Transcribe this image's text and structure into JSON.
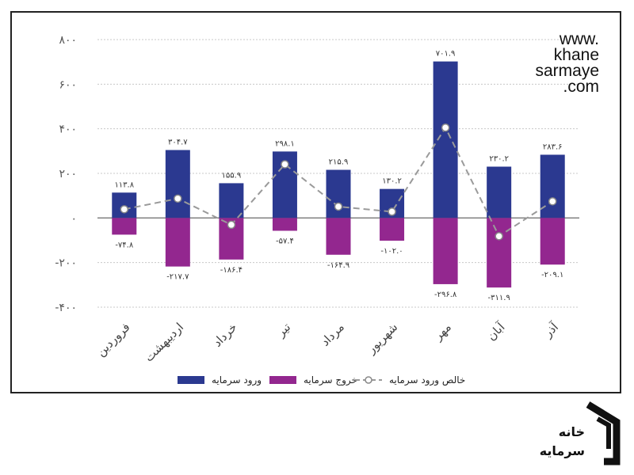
{
  "brand": {
    "lines": [
      "www.",
      "khane",
      "sarmaye",
      ".com"
    ],
    "logo_words": [
      "خانه",
      "سرمایه"
    ]
  },
  "colors": {
    "inflow": "#2b3990",
    "outflow": "#93278f",
    "net": "#9a9a9a",
    "axis": "#555555",
    "grid": "#c8c8c8"
  },
  "chart_data": {
    "type": "bar",
    "title": "",
    "xlabel": "",
    "ylabel": "",
    "ylim": [
      -400,
      800
    ],
    "yticks": [
      -400,
      -200,
      0,
      200,
      400,
      600,
      800
    ],
    "ytick_labels": [
      "-۴۰۰",
      "-۲۰۰",
      "۰",
      "۲۰۰",
      "۴۰۰",
      "۶۰۰",
      "۸۰۰"
    ],
    "categories": [
      "فروردین",
      "اردیبهشت",
      "خرداد",
      "تیر",
      "مرداد",
      "شهریور",
      "مهر",
      "آبان",
      "آذر"
    ],
    "series": [
      {
        "name": "ورود سرمایه",
        "kind": "bar",
        "color": "#2b3990",
        "values": [
          113.8,
          304.7,
          155.9,
          298.1,
          215.9,
          130.2,
          701.9,
          230.2,
          283.6
        ],
        "labels": [
          "۱۱۳.۸",
          "۳۰۴.۷",
          "۱۵۵.۹",
          "۲۹۸.۱",
          "۲۱۵.۹",
          "۱۳۰.۲",
          "۷۰۱.۹",
          "۲۳۰.۲",
          "۲۸۳.۶"
        ]
      },
      {
        "name": "خروج سرمایه",
        "kind": "bar",
        "color": "#93278f",
        "values": [
          -74.8,
          -217.7,
          -186.4,
          -57.4,
          -164.9,
          -102.0,
          -296.8,
          -311.9,
          -209.1
        ],
        "labels": [
          "-۷۴.۸",
          "-۲۱۷.۷",
          "-۱۸۶.۴",
          "-۵۷.۴",
          "-۱۶۴.۹",
          "-۱۰۲.۰",
          "-۲۹۶.۸",
          "-۳۱۱.۹",
          "-۲۰۹.۱"
        ]
      },
      {
        "name": "خالص ورود سرمایه",
        "kind": "line",
        "color": "#9a9a9a",
        "values": [
          39.0,
          87.0,
          -30.5,
          240.7,
          51.0,
          28.2,
          405.1,
          -81.7,
          74.5
        ]
      }
    ],
    "legend": {
      "position": "bottom",
      "order": [
        "خالص ورود سرمایه",
        "خروج سرمایه",
        "ورود سرمایه"
      ]
    }
  }
}
